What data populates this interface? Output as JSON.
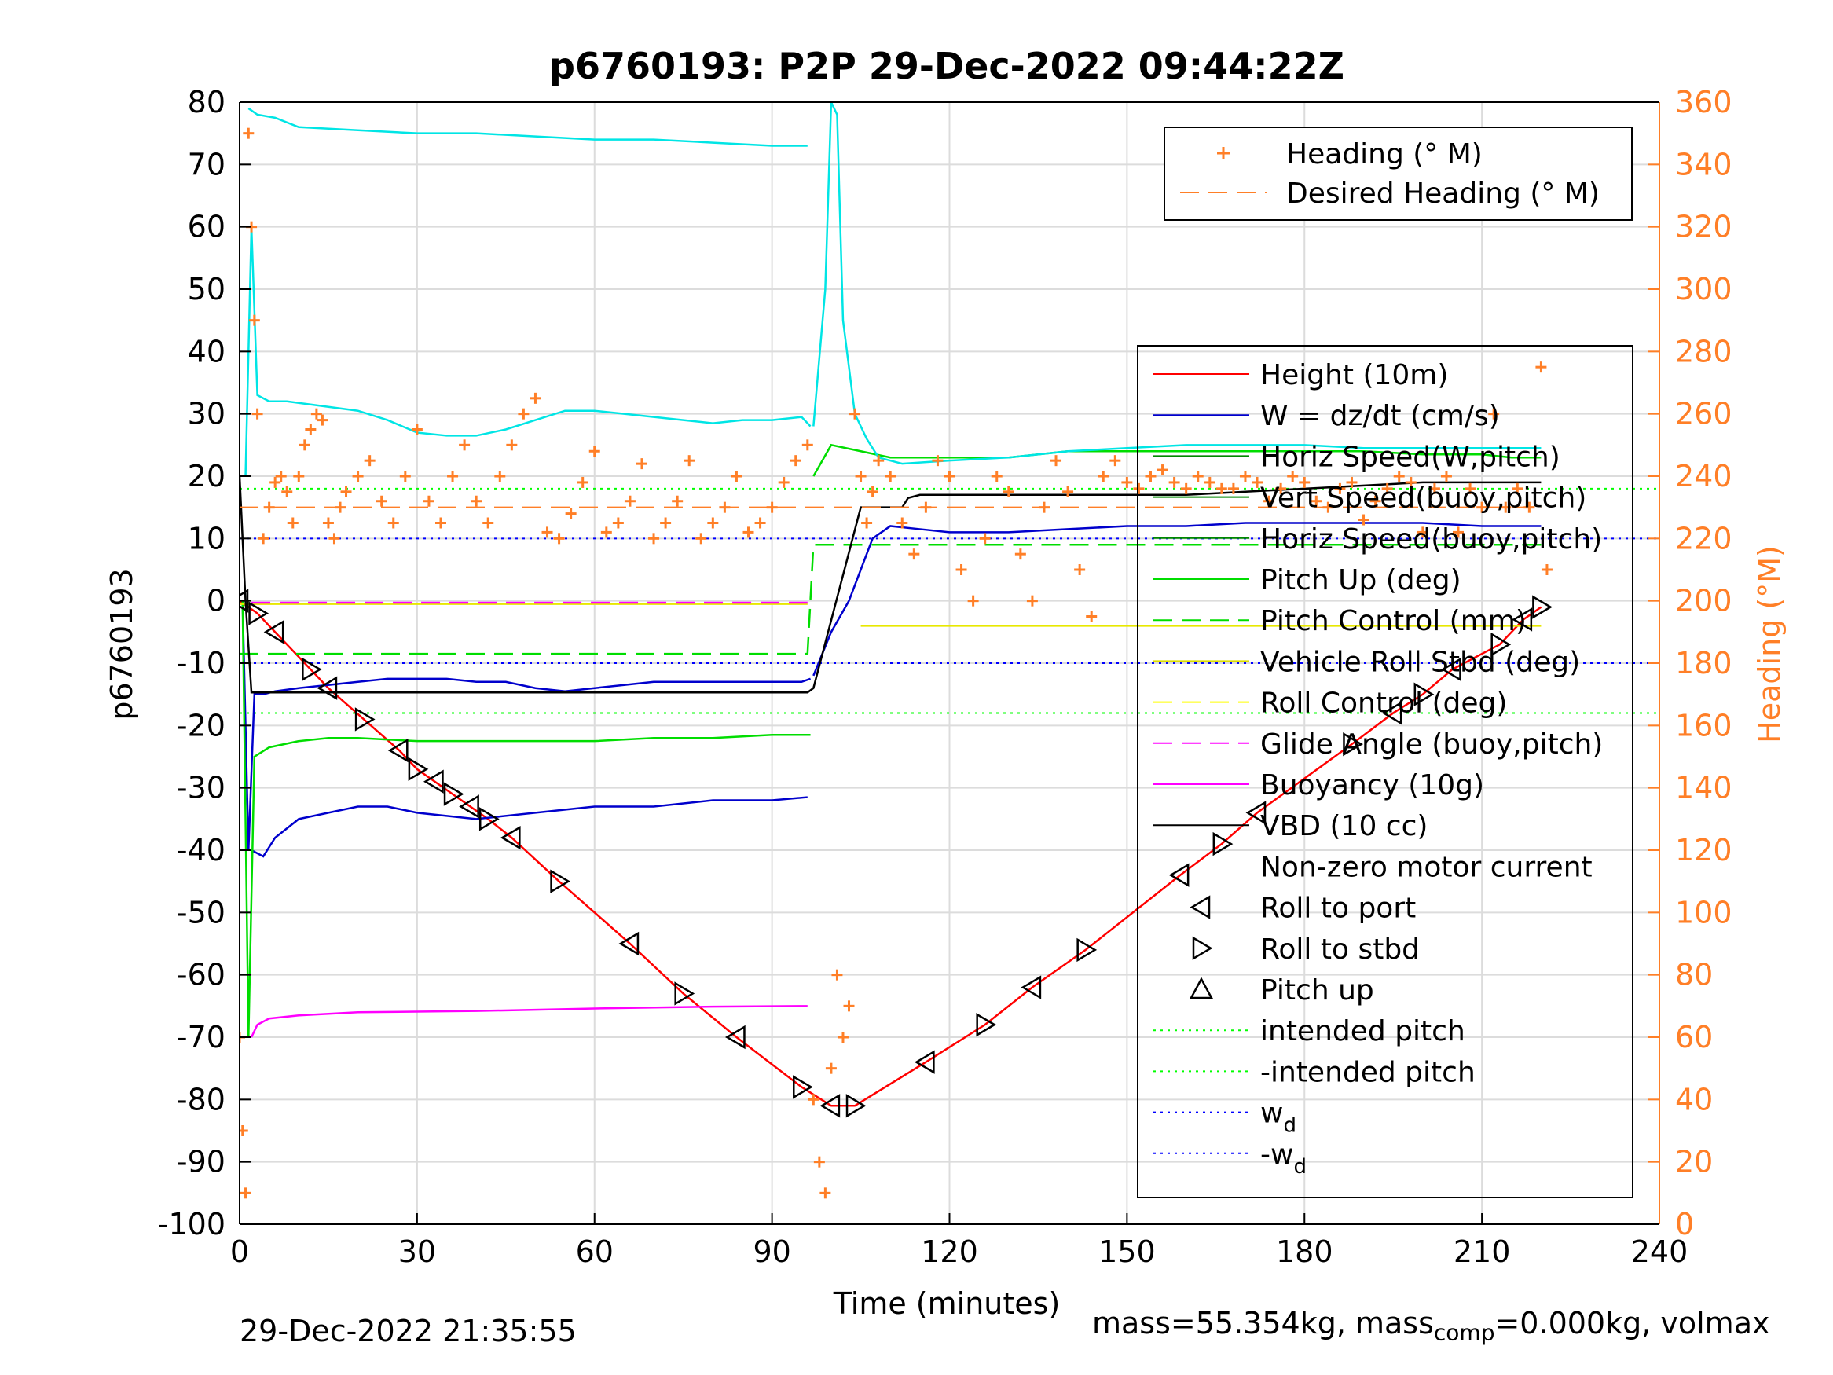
{
  "chart_data": {
    "type": "line",
    "title": "p6760193: P2P 29-Dec-2022 09:44:22Z",
    "xlabel": "Time (minutes)",
    "ylabel_left": "p6760193",
    "ylabel_right": "Heading (°M)",
    "xlim": [
      0,
      240
    ],
    "ylim_left": [
      -100,
      80
    ],
    "ylim_right": [
      0,
      360
    ],
    "xticks": [
      "0",
      "30",
      "60",
      "90",
      "120",
      "150",
      "180",
      "210",
      "240"
    ],
    "yticks_left": [
      "80",
      "70",
      "60",
      "50",
      "40",
      "30",
      "20",
      "10",
      "0",
      "-10",
      "-20",
      "-30",
      "-40",
      "-50",
      "-60",
      "-70",
      "-80",
      "-90",
      "-100"
    ],
    "yticks_right": [
      "360",
      "340",
      "320",
      "300",
      "280",
      "260",
      "240",
      "220",
      "200",
      "180",
      "160",
      "140",
      "120",
      "100",
      "80",
      "60",
      "40",
      "20",
      "0"
    ],
    "grid": true,
    "legend_heading": [
      {
        "label": "Heading (° M)",
        "color": "#ff7f27",
        "style": "plus"
      },
      {
        "label": "Desired Heading (° M)",
        "color": "#ff7f27",
        "style": "dashed"
      }
    ],
    "legend_main": [
      {
        "label": "Height (10m)",
        "color": "#ff0000",
        "style": "solid"
      },
      {
        "label": "W = dz/dt (cm/s)",
        "color": "#0000cc",
        "style": "solid"
      },
      {
        "label": "Horiz Speed(W,pitch)",
        "color": "#008800",
        "style": "solid"
      },
      {
        "label": "Vert Speed(buoy,pitch)",
        "color": "#008800",
        "style": "solid"
      },
      {
        "label": "Horiz Speed(buoy,pitch)",
        "color": "#008800",
        "style": "solid"
      },
      {
        "label": "Pitch Up (deg)",
        "color": "#00dd00",
        "style": "solid"
      },
      {
        "label": "Pitch Control (mm)",
        "color": "#00dd00",
        "style": "dashed"
      },
      {
        "label": "Vehicle Roll Stbd (deg)",
        "color": "#dddd00",
        "style": "solid"
      },
      {
        "label": "Roll Control (deg)",
        "color": "#ffff00",
        "style": "dashed"
      },
      {
        "label": "Glide Angle (buoy,pitch)",
        "color": "#ff00ff",
        "style": "dashed"
      },
      {
        "label": "Buoyancy (10g)",
        "color": "#ff00ff",
        "style": "solid"
      },
      {
        "label": "VBD (10 cc)",
        "color": "#000000",
        "style": "solid"
      },
      {
        "label": "Non-zero motor current",
        "color": "#000000",
        "style": "none"
      },
      {
        "label": "Roll to port",
        "color": "#000000",
        "style": "tri-left"
      },
      {
        "label": "Roll to stbd",
        "color": "#000000",
        "style": "tri-right"
      },
      {
        "label": "Pitch up",
        "color": "#000000",
        "style": "tri-up"
      },
      {
        "label": "intended pitch",
        "color": "#00ff00",
        "style": "dotted"
      },
      {
        "label": "-intended pitch",
        "color": "#00ff00",
        "style": "dotted"
      },
      {
        "label": "w_d",
        "color": "#0000ff",
        "style": "dotted"
      },
      {
        "label": "-w_d",
        "color": "#0000ff",
        "style": "dotted"
      }
    ],
    "reference_lines": {
      "intended_pitch": 18,
      "w_d": 10
    },
    "series": [
      {
        "name": "Height (10m)",
        "color": "#ff0000",
        "x": [
          0,
          3,
          6,
          12,
          15,
          21,
          27,
          30,
          33,
          36,
          39,
          42,
          46,
          54,
          66,
          75,
          84,
          95,
          100,
          104,
          116,
          126,
          134,
          143,
          159,
          166,
          172,
          188,
          195,
          200,
          205,
          213,
          217,
          220
        ],
        "y": [
          0,
          -2,
          -5,
          -11,
          -14,
          -19,
          -24,
          -27,
          -29,
          -31,
          -33,
          -35,
          -38,
          -45,
          -55,
          -63,
          -70,
          -78,
          -81,
          -81,
          -74,
          -68,
          -62,
          -56,
          -44,
          -39,
          -34,
          -23,
          -18,
          -15,
          -11,
          -7,
          -3,
          -1
        ]
      },
      {
        "name": "W = dz/dt (cm/s) descent",
        "color": "#0000cc",
        "x": [
          0.5,
          1.5,
          2.5,
          4,
          6,
          10,
          15,
          20,
          25,
          30,
          35,
          40,
          45,
          50,
          55,
          60,
          65,
          70,
          75,
          80,
          85,
          90,
          95,
          96.5
        ],
        "y": [
          0,
          -40,
          -15,
          -15,
          -14.5,
          -14,
          -13.5,
          -13,
          -12.5,
          -12.5,
          -12.5,
          -13,
          -13,
          -14,
          -14.5,
          -14,
          -13.5,
          -13,
          -13,
          -13,
          -13,
          -13,
          -13,
          -12.5
        ]
      },
      {
        "name": "W = dz/dt (cm/s) ascent",
        "color": "#0000cc",
        "x": [
          97,
          100,
          103,
          105,
          107,
          110,
          115,
          120,
          130,
          140,
          150,
          160,
          170,
          180,
          190,
          200,
          210,
          215,
          220
        ],
        "y": [
          -12,
          -5,
          0,
          5,
          10,
          12,
          11.5,
          11,
          11,
          11.5,
          12,
          12,
          12.5,
          12.5,
          12.5,
          12.5,
          12,
          12,
          12
        ]
      },
      {
        "name": "Horiz Speed(buoy,pitch) descent",
        "color": "#0000cc",
        "x": [
          2,
          4,
          6,
          10,
          15,
          20,
          25,
          30,
          40,
          50,
          60,
          70,
          80,
          90,
          96
        ],
        "y": [
          -40,
          -41,
          -38,
          -35,
          -34,
          -33,
          -33,
          -34,
          -35,
          -34,
          -33,
          -33,
          -32,
          -32,
          -31.5
        ]
      },
      {
        "name": "Pitch Up (deg) descent",
        "color": "#00dd00",
        "x": [
          0.5,
          1.5,
          2.5,
          5,
          10,
          15,
          20,
          30,
          40,
          50,
          60,
          70,
          80,
          90,
          96.5
        ],
        "y": [
          0,
          -70,
          -25,
          -23.5,
          -22.5,
          -22,
          -22,
          -22.5,
          -22.5,
          -22.5,
          -22.5,
          -22,
          -22,
          -21.5,
          -21.5
        ]
      },
      {
        "name": "Pitch Up (deg) ascent",
        "color": "#00dd00",
        "x": [
          97,
          100,
          105,
          110,
          120,
          130,
          140,
          150,
          160,
          170,
          180,
          190,
          200,
          210,
          215,
          220
        ],
        "y": [
          20,
          25,
          24,
          23,
          23,
          23,
          24,
          24,
          24,
          24,
          24,
          24,
          23.5,
          23.5,
          23,
          23
        ]
      },
      {
        "name": "Pitch Control (mm)",
        "color": "#00dd00",
        "dash": true,
        "x": [
          0,
          96,
          97,
          220
        ],
        "y": [
          -8.5,
          -8.5,
          9,
          9
        ]
      },
      {
        "name": "Vehicle Roll Stbd (deg) ascent",
        "color": "#e8e800",
        "x": [
          105,
          120,
          140,
          160,
          180,
          200,
          220
        ],
        "y": [
          -4,
          -4,
          -4,
          -4,
          -4,
          -4,
          -4
        ]
      },
      {
        "name": "Vehicle Roll Stbd (deg) descent",
        "color": "#e8e800",
        "x": [
          0,
          30,
          60,
          90,
          96
        ],
        "y": [
          -0.5,
          -0.5,
          -0.5,
          -0.5,
          -0.5
        ]
      },
      {
        "name": "Glide Angle (buoy,pitch)",
        "color": "#ff00ff",
        "dash": true,
        "x": [
          2,
          96
        ],
        "y": [
          -0.3,
          -0.3
        ]
      },
      {
        "name": "Buoyancy (10g)",
        "color": "#ff00ff",
        "x": [
          2,
          3,
          5,
          10,
          20,
          40,
          60,
          80,
          96
        ],
        "y": [
          -70,
          -68,
          -67,
          -66.5,
          -66,
          -65.8,
          -65.4,
          -65.1,
          -65
        ]
      },
      {
        "name": "VBD (10 cc)",
        "color": "#000000",
        "x": [
          0,
          1,
          2,
          96,
          97,
          105,
          106,
          112,
          113,
          115,
          130,
          160,
          200,
          220
        ],
        "y": [
          20,
          0,
          -14.7,
          -14.7,
          -14,
          15,
          15,
          15,
          16.5,
          17,
          17,
          17,
          19,
          19
        ]
      },
      {
        "name": "Vert Speed / Horiz Speed (cyan) descent",
        "color": "#00e5e5",
        "x": [
          1,
          2,
          3,
          5,
          8,
          12,
          16,
          20,
          25,
          30,
          35,
          40,
          45,
          50,
          55,
          60,
          65,
          70,
          75,
          80,
          85,
          90,
          95,
          96.5
        ],
        "y": [
          20,
          60,
          33,
          32,
          32,
          31.5,
          31,
          30.5,
          29,
          27,
          26.5,
          26.5,
          27.5,
          29,
          30.5,
          30.5,
          30,
          29.5,
          29,
          28.5,
          29,
          29,
          29.5,
          28
        ]
      },
      {
        "name": "Vert Speed / Horiz Speed (cyan) top",
        "color": "#00e5e5",
        "x": [
          1.5,
          3,
          6,
          10,
          20,
          30,
          40,
          50,
          60,
          70,
          80,
          90,
          96
        ],
        "y": [
          79,
          78,
          77.5,
          76,
          75.5,
          75,
          75,
          74.5,
          74,
          74,
          73.5,
          73,
          73
        ]
      },
      {
        "name": "Vert Speed / Horiz Speed (cyan) ascent",
        "color": "#00e5e5",
        "x": [
          97,
          99,
          100,
          101,
          102,
          104,
          106,
          108,
          112,
          120,
          130,
          140,
          150,
          160,
          170,
          180,
          190,
          200,
          210,
          220
        ],
        "y": [
          28,
          50,
          80,
          78,
          45,
          30,
          26,
          23,
          22,
          22.5,
          23,
          24,
          24.5,
          25,
          25,
          25,
          24.5,
          24.5,
          24.5,
          24.5
        ]
      }
    ],
    "heading_samples": {
      "x": [
        0,
        0.5,
        1,
        1.5,
        2,
        2.5,
        3,
        4,
        5,
        6,
        7,
        8,
        9,
        10,
        11,
        12,
        13,
        14,
        15,
        16,
        17,
        18,
        20,
        22,
        24,
        26,
        28,
        30,
        32,
        34,
        36,
        38,
        40,
        42,
        44,
        46,
        48,
        50,
        52,
        54,
        56,
        58,
        60,
        62,
        64,
        66,
        68,
        70,
        72,
        74,
        76,
        78,
        80,
        82,
        84,
        86,
        88,
        90,
        92,
        94,
        96,
        97,
        98,
        99,
        100,
        101,
        102,
        103,
        104,
        105,
        106,
        107,
        108,
        110,
        112,
        114,
        116,
        118,
        120,
        122,
        124,
        126,
        128,
        130,
        132,
        134,
        136,
        138,
        140,
        142,
        144,
        146,
        148,
        150,
        152,
        154,
        156,
        158,
        160,
        162,
        164,
        166,
        168,
        170,
        172,
        174,
        176,
        178,
        180,
        182,
        184,
        186,
        188,
        190,
        192,
        194,
        196,
        198,
        200,
        202,
        204,
        206,
        208,
        210,
        212,
        214,
        216,
        218,
        220,
        221
      ],
      "y": [
        60,
        30,
        10,
        350,
        320,
        290,
        260,
        220,
        230,
        238,
        240,
        235,
        225,
        240,
        250,
        255,
        260,
        258,
        225,
        220,
        230,
        235,
        240,
        245,
        232,
        225,
        240,
        255,
        232,
        225,
        240,
        250,
        232,
        225,
        240,
        250,
        260,
        265,
        222,
        220,
        228,
        238,
        248,
        222,
        225,
        232,
        244,
        220,
        225,
        232,
        245,
        220,
        225,
        230,
        240,
        222,
        225,
        230,
        238,
        245,
        250,
        40,
        20,
        10,
        50,
        80,
        60,
        70,
        260,
        240,
        225,
        235,
        245,
        240,
        225,
        215,
        230,
        245,
        240,
        210,
        200,
        220,
        240,
        235,
        215,
        200,
        230,
        245,
        235,
        210,
        195,
        240,
        245,
        238,
        236,
        240,
        242,
        238,
        236,
        240,
        238,
        236,
        236,
        240,
        238,
        232,
        236,
        240,
        238,
        232,
        230,
        236,
        238,
        226,
        232,
        236,
        240,
        238,
        222,
        236,
        240,
        222,
        236,
        230,
        260,
        230,
        236,
        230,
        275,
        210
      ]
    },
    "heading_desired": {
      "x": [
        0,
        220
      ],
      "y": [
        230,
        230
      ]
    }
  },
  "footer": {
    "timestamp": "29-Dec-2022 21:35:55",
    "mass_prefix": "mass=55.354kg, mass",
    "mass_sub": "comp",
    "mass_suffix": "=0.000kg, volmax"
  }
}
